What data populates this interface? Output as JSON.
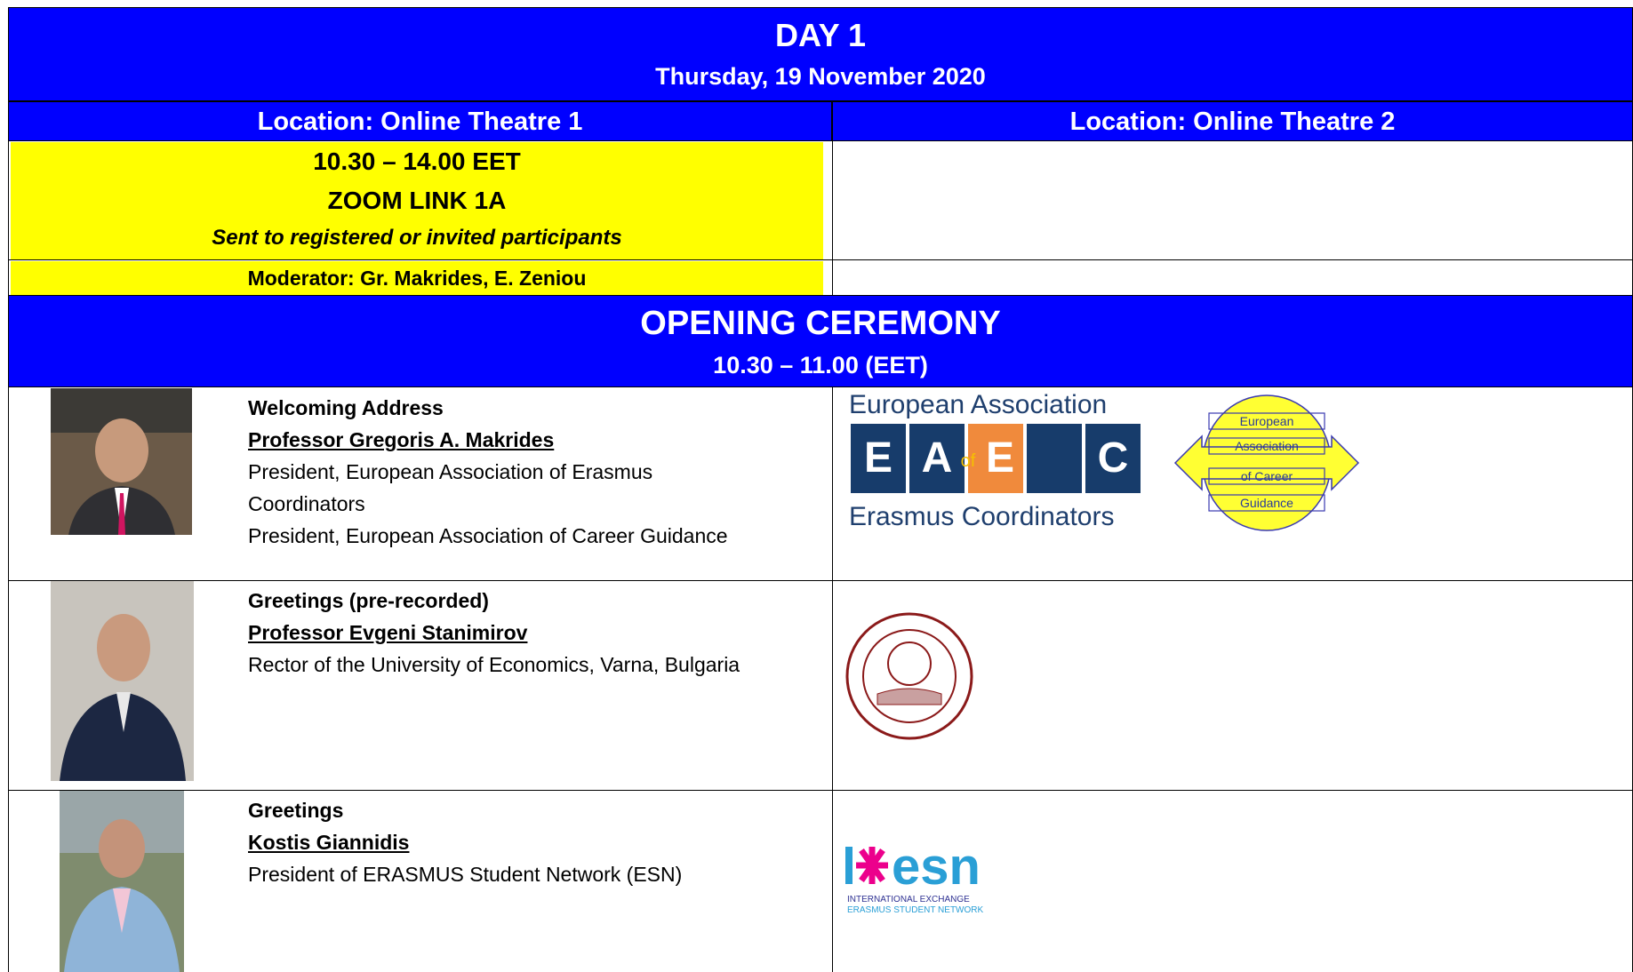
{
  "header": {
    "day": "DAY 1",
    "date": "Thursday, 19 November 2020"
  },
  "locations": [
    "Location: Online Theatre 1",
    "Location: Online Theatre 2"
  ],
  "session": {
    "time": "10.30 – 14.00 EET",
    "link": "ZOOM LINK 1A",
    "note": "Sent to registered or invited participants",
    "moderator": "Moderator: Gr. Makrides, E. Zeniou"
  },
  "section": {
    "title": "OPENING CEREMONY",
    "time": "10.30 – 11.00 (EET)"
  },
  "speakers": [
    {
      "role": "Welcoming Address",
      "name": "Professor Gregoris A. Makrides",
      "lines": [
        "President, European Association of Erasmus Coordinators",
        "President, European Association of Career Guidance"
      ]
    },
    {
      "role": "Greetings (pre-recorded)",
      "name": "Professor Evgeni Stanimirov",
      "lines": [
        "Rector of the University of Economics, Varna, Bulgaria"
      ]
    },
    {
      "role": "Greetings",
      "name": "Kostis Giannidis",
      "lines": [
        "President of ERASMUS Student Network (ESN)"
      ]
    }
  ],
  "logos": {
    "eaec": {
      "top": "European Association",
      "letters": [
        "E",
        "A",
        "of",
        "E",
        "C"
      ],
      "bottom": "Erasmus Coordinators"
    },
    "eacg": [
      "European",
      "Association",
      "of Career",
      "Guidance"
    ],
    "esn": {
      "mark": "esn",
      "lines": [
        "INTERNATIONAL EXCHANGE",
        "ERASMUS STUDENT NETWORK"
      ]
    }
  }
}
